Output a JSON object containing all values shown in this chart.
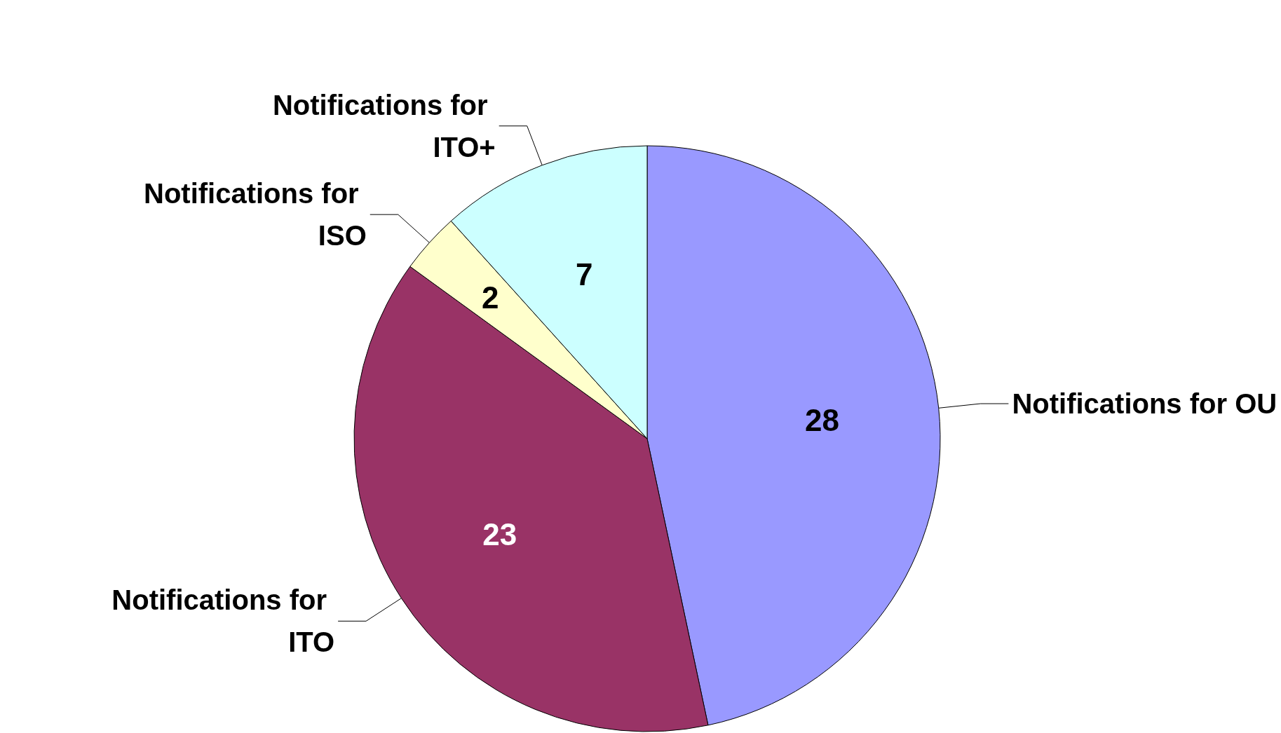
{
  "chart_data": {
    "type": "pie",
    "categories": [
      "Notifications for OU",
      "Notifications for ITO",
      "Notifications for ISO",
      "Notifications for ITO+"
    ],
    "values": [
      28,
      23,
      2,
      7
    ],
    "colors": [
      "#9999ff",
      "#993366",
      "#ffffcc",
      "#ccffff"
    ],
    "data_labels": true,
    "legend": false
  }
}
